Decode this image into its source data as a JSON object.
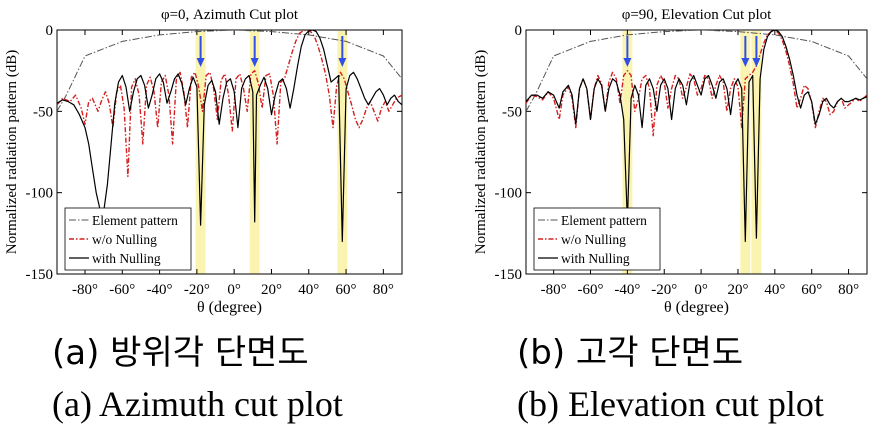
{
  "chart_data": [
    {
      "type": "line",
      "title": "φ=0, Azimuth Cut plot",
      "xlabel": "θ (degree)",
      "ylabel": "Normalized radiation pattern (dB)",
      "xlim": [
        -95,
        90
      ],
      "ylim": [
        -150,
        0
      ],
      "xticks": [
        "-80°",
        "-60°",
        "-40°",
        "-20°",
        "0°",
        "20°",
        "40°",
        "60°",
        "80°"
      ],
      "yticks": [
        "0",
        "-50",
        "-100",
        "-150"
      ],
      "legend_position": "bottom-left",
      "null_markers_deg": [
        -18,
        11,
        58
      ],
      "colors": {
        "element": "#555555",
        "without": "#d42020",
        "with": "#000000",
        "highlight": "#fbf3a8",
        "arrow": "#2f4fe8"
      },
      "series": [
        {
          "name": "Element pattern",
          "style": "dash-dot",
          "x": [
            -95,
            -90,
            -80,
            -60,
            -40,
            -20,
            0,
            20,
            40,
            60,
            80,
            90
          ],
          "y": [
            -50,
            -40,
            -16,
            -7,
            -3,
            -1,
            0,
            -1,
            -3,
            -7,
            -16,
            -30
          ]
        },
        {
          "name": "w/o Nulling",
          "style": "dash-dot",
          "x": [
            -95,
            -92,
            -88,
            -85,
            -82,
            -80,
            -78,
            -76,
            -73,
            -71,
            -69,
            -67,
            -65,
            -63,
            -61,
            -59,
            -57,
            -55,
            -53,
            -51,
            -49,
            -47,
            -45,
            -43,
            -41,
            -39,
            -37,
            -35,
            -33,
            -31,
            -29,
            -27,
            -25,
            -23,
            -21,
            -19,
            -17,
            -15,
            -13,
            -11,
            -9,
            -7,
            -5,
            -3,
            -1,
            1,
            3,
            5,
            7,
            9,
            11,
            13,
            15,
            17,
            19,
            21,
            23,
            25,
            27,
            29,
            31,
            33,
            35,
            37,
            39,
            41,
            43,
            45,
            47,
            49,
            51,
            53,
            55,
            57,
            59,
            61,
            63,
            65,
            67,
            69,
            71,
            73,
            75,
            77,
            79,
            81,
            83,
            85,
            87,
            90
          ],
          "y": [
            -46,
            -42,
            -44,
            -40,
            -48,
            -58,
            -44,
            -42,
            -50,
            -43,
            -38,
            -45,
            -60,
            -38,
            -34,
            -48,
            -90,
            -35,
            -30,
            -40,
            -70,
            -34,
            -29,
            -38,
            -60,
            -32,
            -28,
            -40,
            -70,
            -30,
            -26,
            -38,
            -60,
            -29,
            -26,
            -35,
            -50,
            -28,
            -26,
            -36,
            -55,
            -31,
            -27,
            -40,
            -62,
            -30,
            -27,
            -36,
            -50,
            -27,
            -25,
            -33,
            -48,
            -28,
            -27,
            -40,
            -70,
            -32,
            -30,
            -22,
            -14,
            -7,
            -2,
            -0.5,
            0,
            -1,
            -4,
            -10,
            -18,
            -27,
            -40,
            -60,
            -34,
            -26,
            -30,
            -38,
            -46,
            -55,
            -60,
            -55,
            -48,
            -44,
            -50,
            -56,
            -48,
            -44,
            -50,
            -46,
            -42,
            -40
          ]
        },
        {
          "name": "with Nulling",
          "style": "solid",
          "x": [
            -95,
            -92,
            -89,
            -86,
            -83,
            -80,
            -78,
            -76,
            -74,
            -72,
            -70,
            -68,
            -66,
            -64,
            -62,
            -60,
            -58,
            -56,
            -54,
            -52,
            -50,
            -48,
            -46,
            -44,
            -42,
            -40,
            -38,
            -36,
            -34,
            -32,
            -30,
            -28,
            -26,
            -24,
            -22,
            -20,
            -18,
            -16,
            -14,
            -12,
            -10,
            -8,
            -6,
            -4,
            -2,
            0,
            2,
            4,
            6,
            8,
            10,
            11,
            12,
            14,
            16,
            18,
            20,
            22,
            24,
            26,
            28,
            30,
            32,
            34,
            36,
            38,
            40,
            42,
            44,
            46,
            48,
            50,
            52,
            54,
            56,
            58,
            60,
            62,
            64,
            66,
            68,
            70,
            72,
            74,
            76,
            78,
            80,
            82,
            84,
            86,
            88,
            90
          ],
          "y": [
            -45,
            -43,
            -44,
            -46,
            -52,
            -60,
            -70,
            -85,
            -100,
            -110,
            -112,
            -95,
            -70,
            -45,
            -32,
            -28,
            -35,
            -50,
            -38,
            -30,
            -28,
            -34,
            -48,
            -40,
            -30,
            -27,
            -32,
            -45,
            -38,
            -30,
            -27,
            -33,
            -46,
            -36,
            -29,
            -35,
            -120,
            -46,
            -34,
            -31,
            -38,
            -58,
            -42,
            -32,
            -30,
            -38,
            -60,
            -36,
            -30,
            -28,
            -38,
            -118,
            -40,
            -34,
            -29,
            -36,
            -52,
            -40,
            -32,
            -30,
            -36,
            -48,
            -36,
            -22,
            -10,
            -3,
            -0.5,
            0,
            -1,
            -5,
            -12,
            -22,
            -32,
            -30,
            -28,
            -130,
            -36,
            -28,
            -26,
            -30,
            -36,
            -42,
            -46,
            -42,
            -38,
            -36,
            -40,
            -46,
            -42,
            -40,
            -44,
            -46
          ]
        }
      ]
    },
    {
      "type": "line",
      "title": "φ=90, Elevation Cut plot",
      "xlabel": "θ (degree)",
      "ylabel": "Normalized radiation pattern (dB)",
      "xlim": [
        -95,
        90
      ],
      "ylim": [
        -150,
        0
      ],
      "xticks": [
        "-80°",
        "-60°",
        "-40°",
        "-20°",
        "0°",
        "20°",
        "40°",
        "60°",
        "80°"
      ],
      "yticks": [
        "0",
        "-50",
        "-100",
        "-150"
      ],
      "legend_position": "bottom-left",
      "null_markers_deg": [
        -40,
        24,
        30
      ],
      "colors": {
        "element": "#555555",
        "without": "#d42020",
        "with": "#000000",
        "highlight": "#fbf3a8",
        "arrow": "#2f4fe8"
      },
      "series": [
        {
          "name": "Element pattern",
          "style": "dash-dot",
          "x": [
            -95,
            -90,
            -80,
            -60,
            -40,
            -20,
            0,
            20,
            40,
            60,
            80,
            90
          ],
          "y": [
            -50,
            -40,
            -16,
            -7,
            -3,
            -1,
            0,
            -1,
            -3,
            -7,
            -16,
            -30
          ]
        },
        {
          "name": "w/o Nulling",
          "style": "dash-dot",
          "x": [
            -95,
            -92,
            -89,
            -86,
            -83,
            -80,
            -77,
            -75,
            -72,
            -70,
            -68,
            -66,
            -64,
            -62,
            -60,
            -58,
            -56,
            -54,
            -52,
            -50,
            -48,
            -46,
            -44,
            -42,
            -40,
            -38,
            -36,
            -34,
            -32,
            -30,
            -28,
            -26,
            -24,
            -22,
            -20,
            -18,
            -16,
            -14,
            -12,
            -10,
            -8,
            -6,
            -4,
            -2,
            0,
            2,
            4,
            6,
            8,
            10,
            12,
            14,
            16,
            18,
            20,
            22,
            24,
            26,
            28,
            30,
            32,
            34,
            36,
            38,
            40,
            42,
            44,
            46,
            48,
            50,
            52,
            54,
            56,
            58,
            60,
            62,
            64,
            66,
            68,
            70,
            72,
            74,
            76,
            78,
            80,
            82,
            84,
            86,
            88,
            90
          ],
          "y": [
            -45,
            -40,
            -41,
            -43,
            -38,
            -42,
            -55,
            -40,
            -35,
            -42,
            -60,
            -36,
            -30,
            -36,
            -55,
            -36,
            -28,
            -33,
            -50,
            -32,
            -26,
            -30,
            -45,
            -28,
            -25,
            -28,
            -50,
            -42,
            -30,
            -28,
            -36,
            -65,
            -34,
            -28,
            -32,
            -48,
            -36,
            -28,
            -30,
            -42,
            -35,
            -27,
            -30,
            -40,
            -36,
            -28,
            -30,
            -42,
            -34,
            -28,
            -32,
            -50,
            -36,
            -30,
            -35,
            -60,
            -30,
            -28,
            -26,
            -22,
            -15,
            -8,
            -3,
            -1,
            0,
            -2,
            -6,
            -13,
            -22,
            -33,
            -48,
            -42,
            -34,
            -36,
            -45,
            -60,
            -50,
            -42,
            -44,
            -52,
            -50,
            -44,
            -42,
            -48,
            -46,
            -44,
            -42,
            -44,
            -42,
            -40
          ]
        },
        {
          "name": "with Nulling",
          "style": "solid",
          "x": [
            -95,
            -92,
            -89,
            -86,
            -83,
            -80,
            -77,
            -75,
            -72,
            -70,
            -68,
            -66,
            -64,
            -62,
            -60,
            -58,
            -56,
            -54,
            -52,
            -50,
            -48,
            -46,
            -44,
            -42,
            -40,
            -38,
            -36,
            -34,
            -32,
            -30,
            -28,
            -26,
            -24,
            -22,
            -20,
            -18,
            -16,
            -14,
            -12,
            -10,
            -8,
            -6,
            -4,
            -2,
            0,
            2,
            4,
            6,
            8,
            10,
            12,
            14,
            16,
            18,
            20,
            22,
            24,
            26,
            28,
            30,
            32,
            34,
            36,
            38,
            40,
            42,
            44,
            46,
            48,
            50,
            52,
            54,
            56,
            58,
            60,
            62,
            64,
            66,
            68,
            70,
            72,
            74,
            76,
            78,
            80,
            82,
            84,
            86,
            88,
            90
          ],
          "y": [
            -44,
            -40,
            -40,
            -42,
            -38,
            -40,
            -48,
            -38,
            -34,
            -40,
            -58,
            -36,
            -30,
            -36,
            -55,
            -36,
            -30,
            -34,
            -50,
            -36,
            -30,
            -32,
            -40,
            -55,
            -118,
            -42,
            -34,
            -40,
            -60,
            -34,
            -30,
            -36,
            -50,
            -34,
            -30,
            -36,
            -55,
            -36,
            -30,
            -34,
            -46,
            -32,
            -28,
            -34,
            -40,
            -30,
            -28,
            -34,
            -42,
            -32,
            -30,
            -36,
            -52,
            -34,
            -30,
            -36,
            -130,
            -32,
            -28,
            -128,
            -30,
            -12,
            -4,
            -1,
            0,
            -1,
            -4,
            -10,
            -18,
            -28,
            -40,
            -48,
            -40,
            -38,
            -44,
            -58,
            -52,
            -44,
            -42,
            -46,
            -48,
            -44,
            -42,
            -44,
            -44,
            -43,
            -42,
            -43,
            -42,
            -41
          ]
        }
      ]
    }
  ],
  "captions": {
    "a_korean": "(a) 방위각 단면도",
    "a_english": "(a) Azimuth cut plot",
    "b_korean": "(b) 고각 단면도",
    "b_english": "(b) Elevation cut plot"
  }
}
